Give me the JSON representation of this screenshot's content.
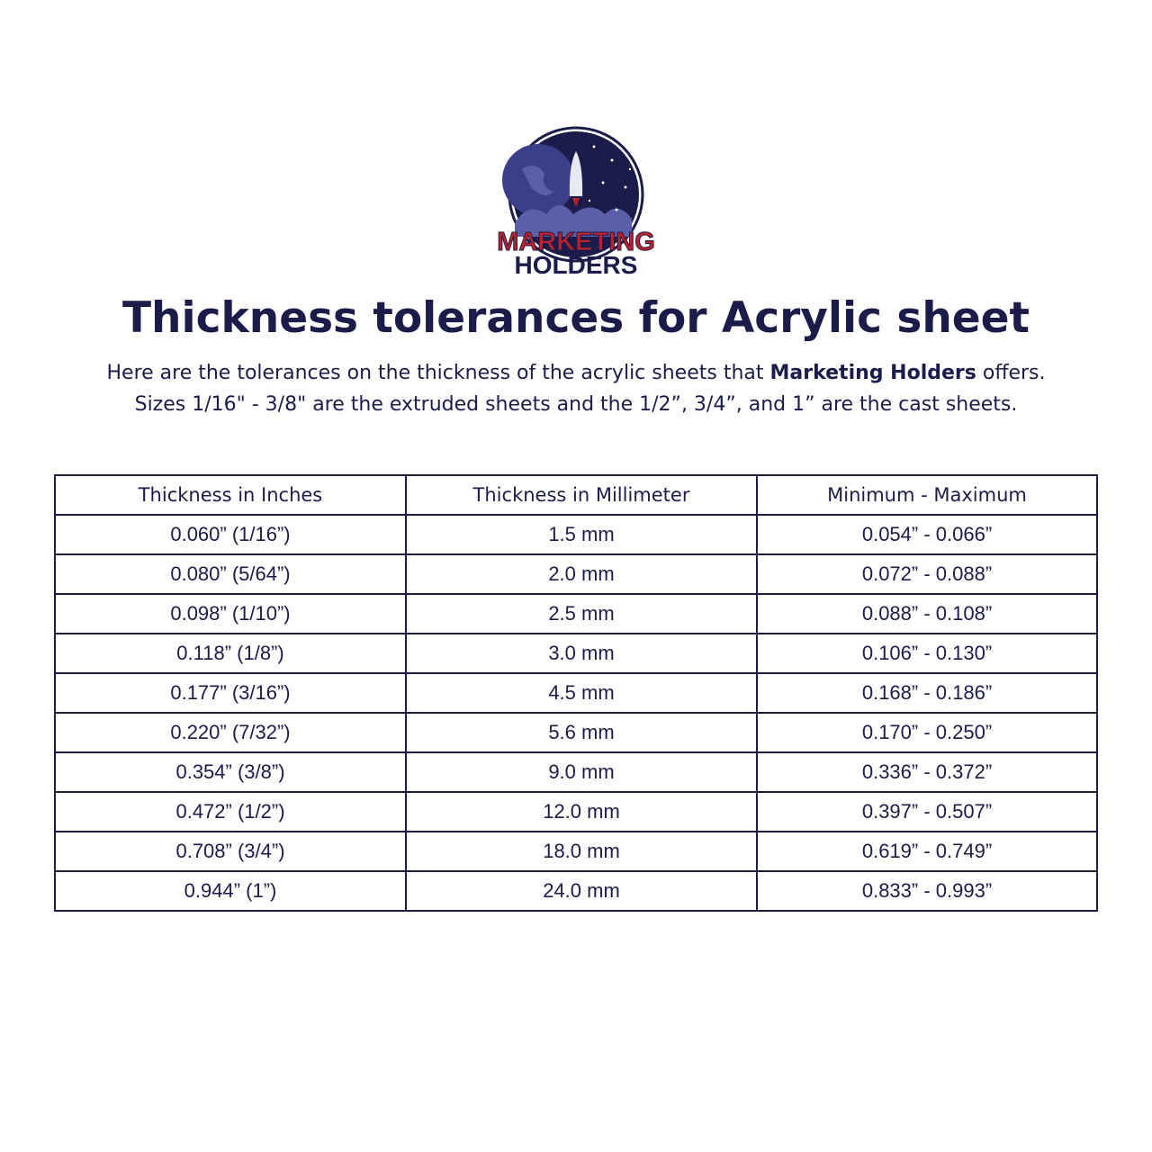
{
  "logo": {
    "line1": "MARKETING",
    "line2": "HOLDERS"
  },
  "title": "Thickness tolerances for Acrylic sheet",
  "subtitle": {
    "line1_pre": "Here are the tolerances on the thickness of the acrylic sheets that ",
    "line1_bold": "Marketing Holders",
    "line1_post": " offers.",
    "line2": "Sizes 1/16\" - 3/8\" are the extruded sheets and the 1/2”, 3/4”, and 1” are the cast sheets."
  },
  "table": {
    "headers": [
      "Thickness in Inches",
      "Thickness in Millimeter",
      "Minimum - Maximum"
    ],
    "rows": [
      [
        "0.060” (1/16”)",
        "1.5 mm",
        "0.054” - 0.066”"
      ],
      [
        "0.080” (5/64”)",
        "2.0 mm",
        "0.072” - 0.088”"
      ],
      [
        "0.098” (1/10”)",
        "2.5 mm",
        "0.088” - 0.108”"
      ],
      [
        "0.118” (1/8”)",
        "3.0 mm",
        "0.106” - 0.130”"
      ],
      [
        "0.177” (3/16”)",
        "4.5 mm",
        "0.168” - 0.186”"
      ],
      [
        "0.220” (7/32”)",
        "5.6 mm",
        "0.170” - 0.250”"
      ],
      [
        "0.354” (3/8”)",
        "9.0 mm",
        "0.336” - 0.372”"
      ],
      [
        "0.472” (1/2”)",
        "12.0 mm",
        "0.397” - 0.507”"
      ],
      [
        "0.708” (3/4”)",
        "18.0 mm",
        "0.619” - 0.749”"
      ],
      [
        "0.944” (1”)",
        "24.0 mm",
        "0.833” - 0.993”"
      ]
    ]
  }
}
